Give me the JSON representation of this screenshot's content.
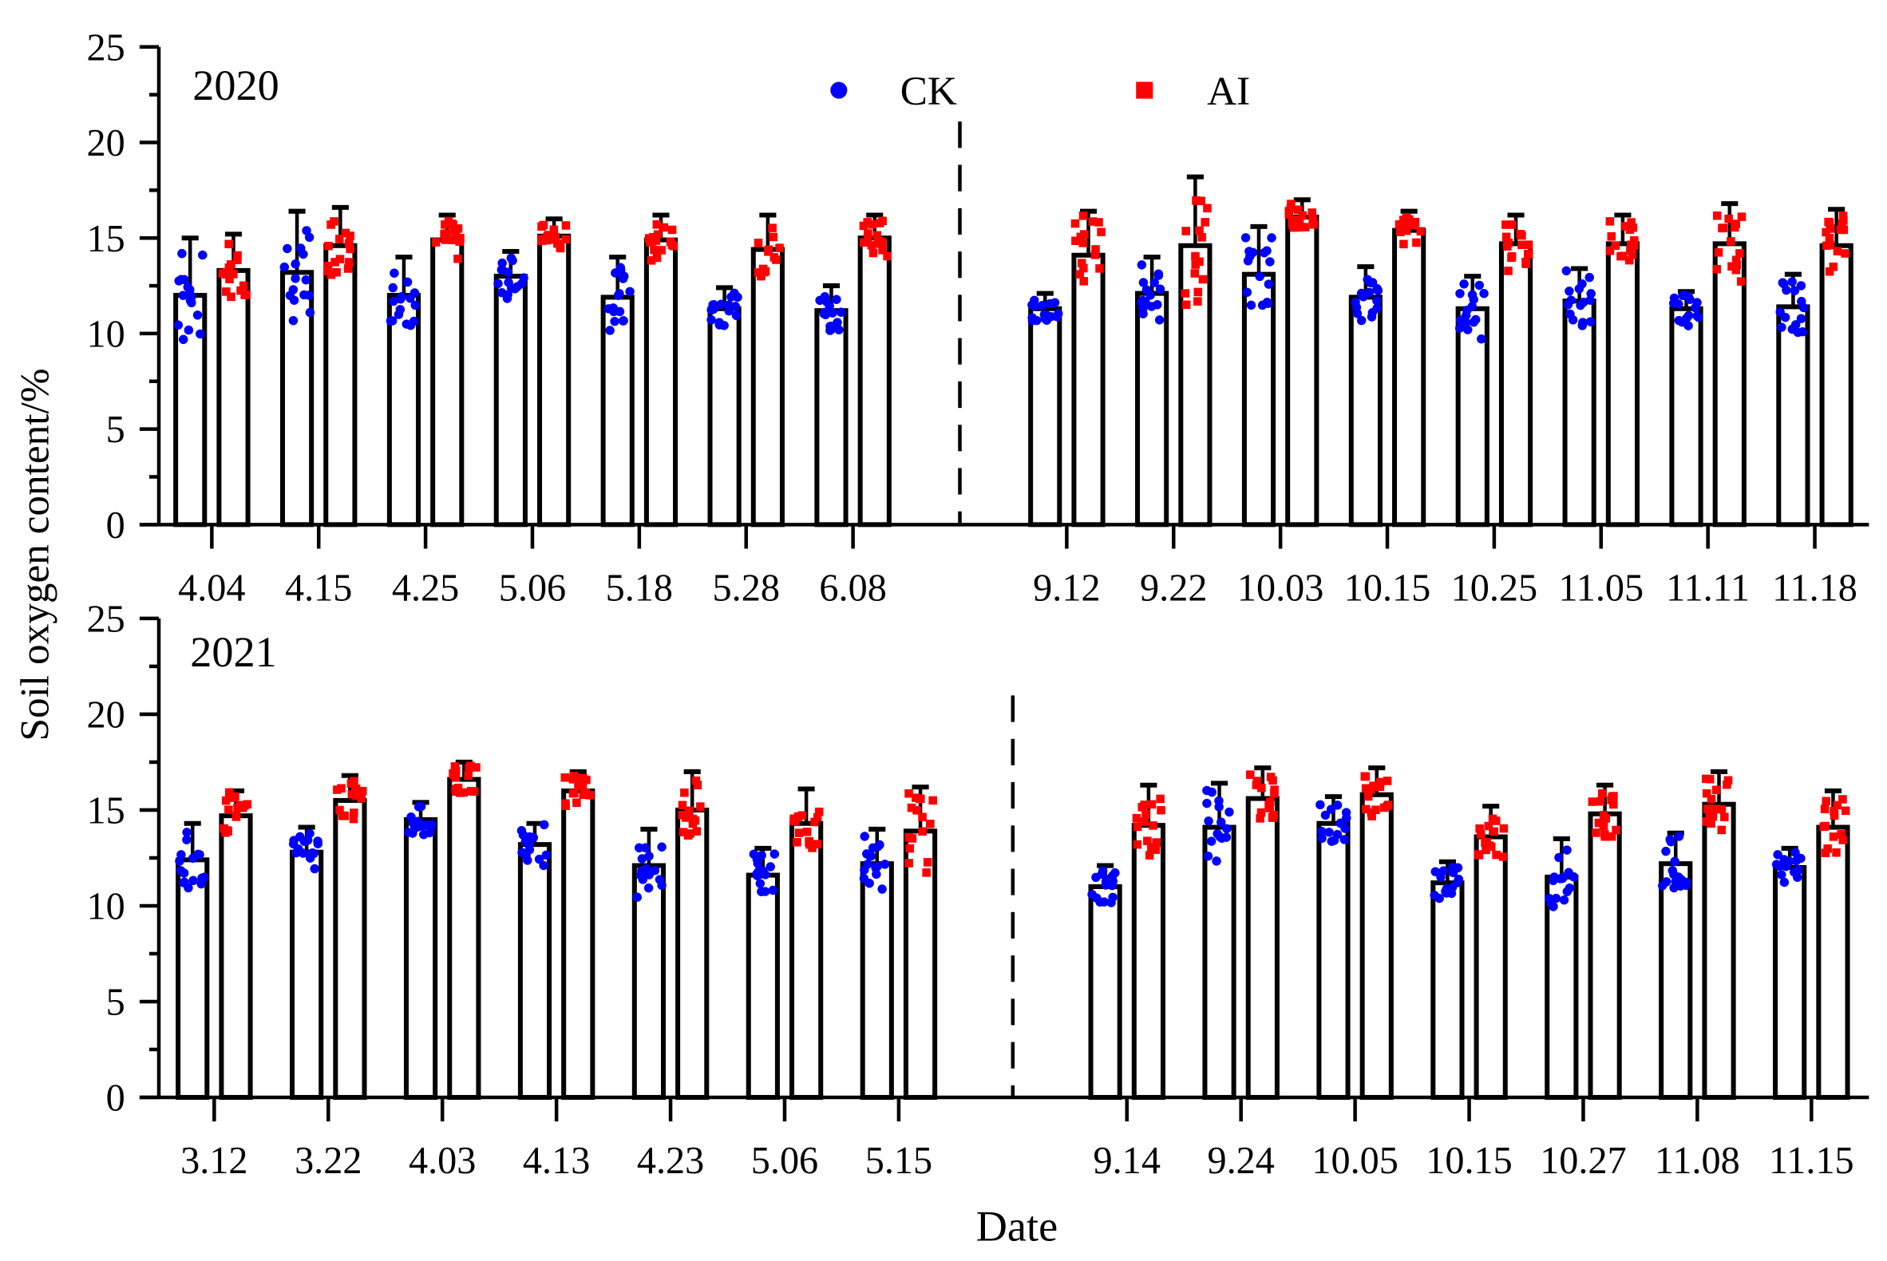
{
  "legend": {
    "ck": "CK",
    "ai": "AI",
    "ck_color": "#0000ff",
    "ai_color": "#ff0000"
  },
  "ylabel": "Soil oxygen content/%",
  "xlabel": "Date",
  "chart_data": [
    {
      "type": "bar",
      "title": "2020",
      "ylim": [
        0,
        25
      ],
      "yticks": [
        "0",
        "5",
        "10",
        "15",
        "20",
        "25"
      ],
      "categories": [
        "4.04",
        "4.15",
        "4.25",
        "5.06",
        "5.18",
        "5.28",
        "6.08",
        "9.12",
        "9.22",
        "10.03",
        "10.15",
        "10.25",
        "11.05",
        "11.11",
        "11.18"
      ],
      "separator_after_index": 6,
      "series": [
        {
          "name": "CK",
          "values": [
            12.0,
            13.2,
            12.0,
            13.0,
            11.9,
            11.3,
            11.2,
            11.3,
            12.1,
            13.1,
            11.9,
            11.3,
            11.7,
            11.3,
            11.4
          ],
          "error_upper": [
            15.0,
            16.4,
            14.0,
            14.3,
            14.0,
            12.4,
            12.5,
            12.1,
            14.0,
            15.6,
            13.5,
            13.0,
            13.4,
            12.2,
            13.1
          ]
        },
        {
          "name": "AI",
          "values": [
            13.3,
            14.6,
            14.9,
            15.1,
            14.9,
            14.4,
            15.0,
            14.1,
            14.6,
            16.1,
            15.4,
            14.7,
            14.7,
            14.7,
            14.6
          ],
          "error_upper": [
            15.2,
            16.6,
            16.2,
            16.0,
            16.2,
            16.2,
            16.2,
            16.4,
            18.2,
            17.0,
            16.4,
            16.2,
            16.2,
            16.8,
            16.5
          ]
        }
      ]
    },
    {
      "type": "bar",
      "title": "2021",
      "ylim": [
        0,
        25
      ],
      "yticks": [
        "0",
        "5",
        "10",
        "15",
        "20",
        "25"
      ],
      "categories": [
        "3.12",
        "3.22",
        "4.03",
        "4.13",
        "4.23",
        "5.06",
        "5.15",
        "9.14",
        "9.24",
        "10.05",
        "10.15",
        "10.27",
        "11.08",
        "11.15"
      ],
      "separator_after_index": 6,
      "series": [
        {
          "name": "CK",
          "values": [
            12.4,
            12.8,
            14.5,
            13.2,
            12.1,
            11.6,
            12.2,
            11.0,
            14.1,
            14.3,
            11.2,
            11.5,
            12.2,
            12.0
          ],
          "error_upper": [
            14.3,
            14.1,
            15.4,
            14.3,
            14.0,
            13.0,
            14.0,
            12.1,
            16.4,
            15.7,
            12.3,
            13.5,
            13.8,
            13.0
          ]
        },
        {
          "name": "AI",
          "values": [
            14.7,
            15.5,
            16.6,
            16.0,
            15.0,
            14.3,
            13.9,
            14.2,
            15.6,
            15.8,
            13.6,
            14.8,
            15.3,
            14.1
          ],
          "error_upper": [
            16.0,
            16.8,
            17.5,
            17.0,
            17.0,
            16.1,
            16.2,
            16.3,
            17.2,
            17.2,
            15.2,
            16.3,
            17.0,
            16.0
          ]
        }
      ]
    }
  ]
}
